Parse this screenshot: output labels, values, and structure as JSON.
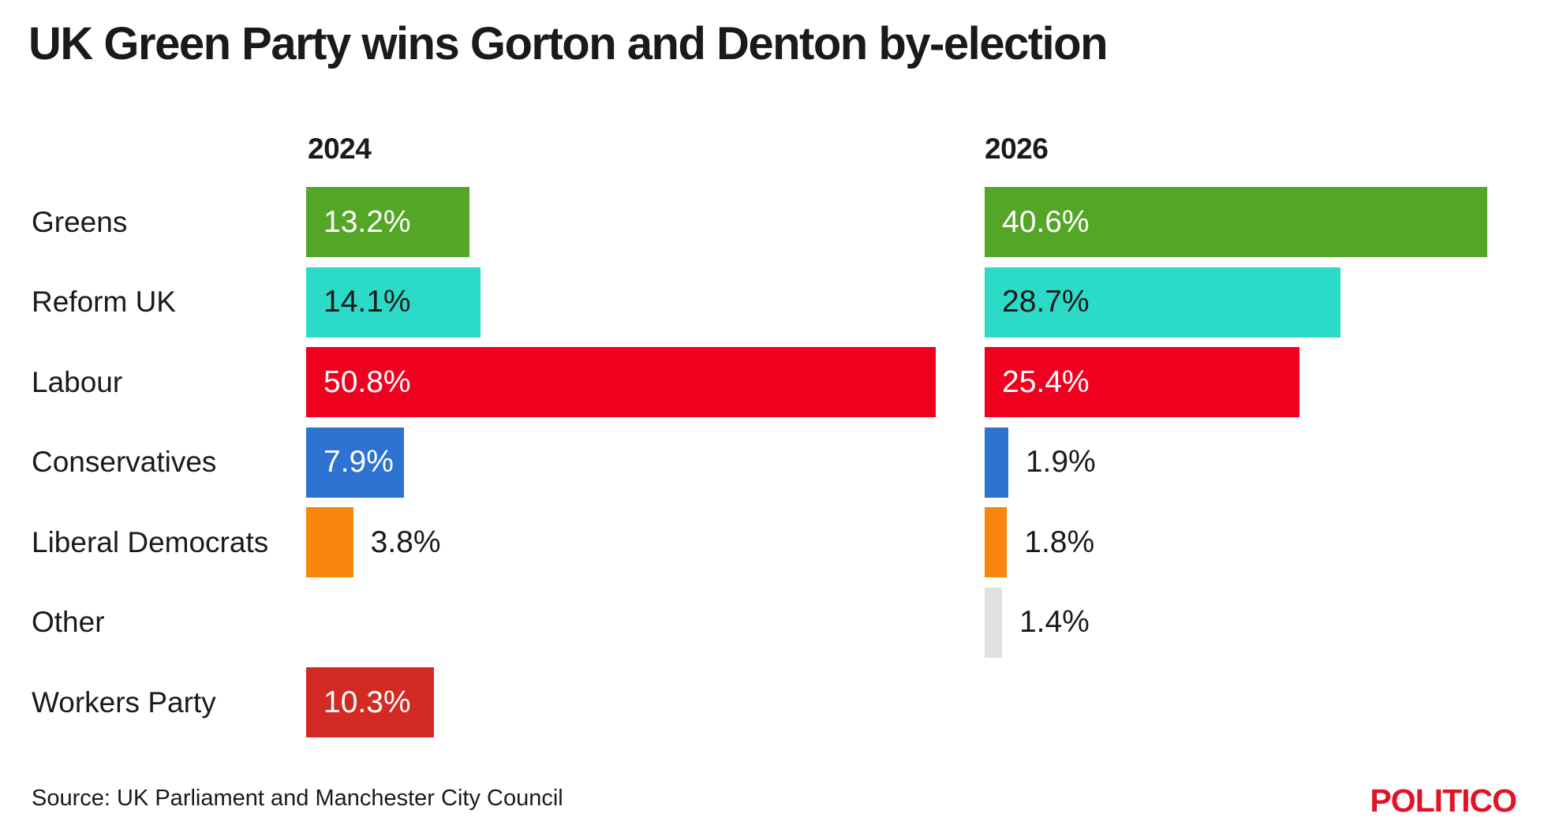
{
  "page": {
    "title": "UK Green Party wins Gorton and Denton by-election",
    "source_note": "Source: UK Parliament and Manchester City Council"
  },
  "branding": {
    "logo_text": "POLITICO",
    "logo_color": "#E11425"
  },
  "chart_data": {
    "type": "bar",
    "orientation": "horizontal",
    "title": "UK Green Party wins Gorton and Denton by-election",
    "categories": [
      "Greens",
      "Reform UK",
      "Labour",
      "Conservatives",
      "Liberal Democrats",
      "Other",
      "Workers Party"
    ],
    "series": [
      {
        "name": "2024",
        "values": [
          13.2,
          14.1,
          50.8,
          7.9,
          3.8,
          null,
          10.3
        ]
      },
      {
        "name": "2026",
        "values": [
          40.6,
          28.7,
          25.4,
          1.9,
          1.8,
          1.4,
          null
        ]
      }
    ],
    "value_suffix": "%",
    "xlim": [
      0,
      41
    ],
    "grid": false,
    "legend_position": "column-headers",
    "bar_colors": {
      "Greens": "#54A627",
      "Reform UK": "#2BDBC8",
      "Labour": "#F0001E",
      "Conservatives": "#2E72D2",
      "Liberal Democrats": "#F8860D",
      "Other": "#E0E0E0",
      "Workers Party": "#D32B23"
    },
    "inside_label_colors": {
      "Greens": "#FFFFFF",
      "Reform UK": "#1A1A1A",
      "Labour": "#FFFFFF",
      "Conservatives": "#FFFFFF",
      "Liberal Democrats": "#1A1A1A",
      "Other": "#1A1A1A",
      "Workers Party": "#FFFFFF"
    },
    "outside_label_color": "#1A1A1A",
    "source": "Source: UK Parliament and Manchester City Council"
  }
}
